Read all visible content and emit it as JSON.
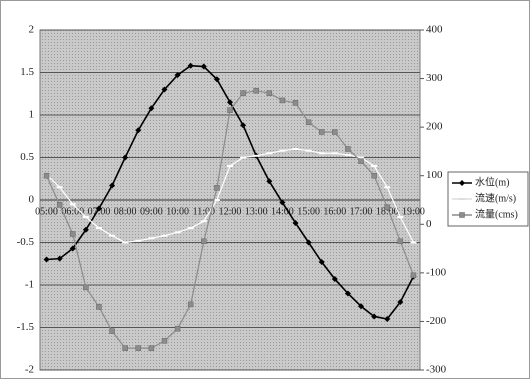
{
  "chart_data": {
    "type": "line",
    "categories": [
      "05:00",
      null,
      "06:00",
      null,
      "07:00",
      null,
      "08:00",
      null,
      "09:00",
      null,
      "10:00",
      null,
      "11:00",
      null,
      "12:00",
      null,
      "13:00",
      null,
      "14:00",
      null,
      "15:00",
      null,
      "16:00",
      null,
      "17:00",
      null,
      "18:00",
      null,
      "19:00"
    ],
    "series": [
      {
        "name": "水位(m)",
        "color": "#000000",
        "marker": "diamond",
        "values": [
          -0.7,
          -0.69,
          -0.57,
          -0.35,
          -0.1,
          0.17,
          0.5,
          0.82,
          1.08,
          1.3,
          1.47,
          1.58,
          1.57,
          1.42,
          1.15,
          0.88,
          0.52,
          0.22,
          -0.03,
          -0.27,
          -0.5,
          -0.73,
          -0.93,
          -1.1,
          -1.25,
          -1.37,
          -1.4,
          -1.2,
          -0.9
        ]
      },
      {
        "name": "流速(m/s)",
        "color": "#ffffff",
        "marker": "dash",
        "values": [
          0.3,
          0.15,
          -0.05,
          -0.2,
          -0.33,
          -0.42,
          -0.5,
          -0.48,
          -0.45,
          -0.42,
          -0.38,
          -0.33,
          -0.25,
          0.0,
          0.4,
          0.5,
          0.52,
          0.55,
          0.58,
          0.6,
          0.58,
          0.55,
          0.55,
          0.53,
          0.5,
          0.4,
          0.15,
          -0.2,
          -0.5
        ]
      },
      {
        "name": "流量(cms)",
        "color": "#8c8c8c",
        "marker": "square",
        "axis": "y2",
        "values": [
          100,
          40,
          -20,
          -130,
          -170,
          -220,
          -255,
          -255,
          -255,
          -240,
          -215,
          -165,
          -35,
          75,
          235,
          270,
          275,
          270,
          255,
          250,
          210,
          190,
          190,
          155,
          130,
          100,
          35,
          -35,
          -105
        ]
      }
    ],
    "ylim": [
      -2,
      2
    ],
    "yticks": [
      -2,
      -1.5,
      -1,
      -0.5,
      0,
      0.5,
      1,
      1.5,
      2
    ],
    "y2lim": [
      -300,
      400
    ],
    "y2ticks": [
      -300,
      -200,
      -100,
      0,
      100,
      200,
      300,
      400
    ],
    "grid": true,
    "legend": "right"
  }
}
